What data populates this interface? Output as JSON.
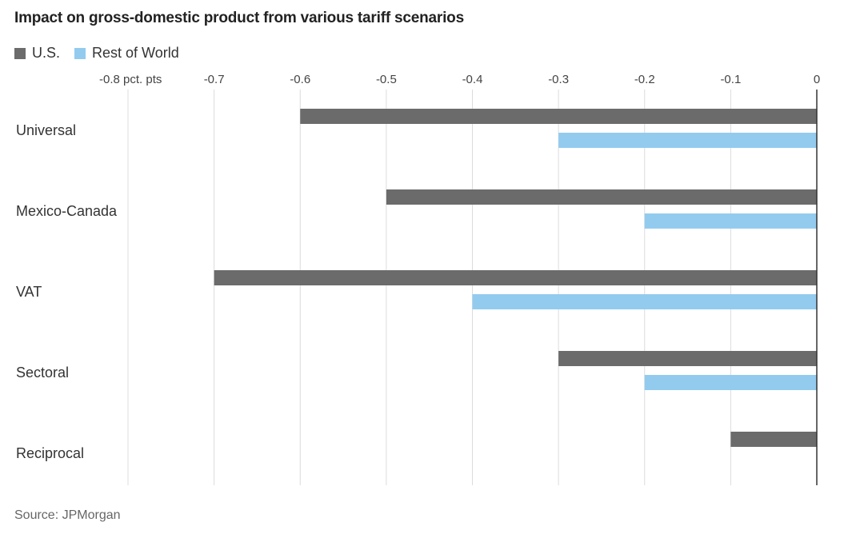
{
  "chart_data": {
    "type": "bar",
    "orientation": "horizontal",
    "title": "Impact on gross-domestic product from various tariff scenarios",
    "categories": [
      "Universal",
      "Mexico-Canada",
      "VAT",
      "Sectoral",
      "Reciprocal"
    ],
    "series": [
      {
        "name": "U.S.",
        "color": "#6b6b6b",
        "values": [
          -0.6,
          -0.5,
          -0.7,
          -0.3,
          -0.1
        ]
      },
      {
        "name": "Rest of World",
        "color": "#93cbef",
        "values": [
          -0.3,
          -0.2,
          -0.4,
          -0.2,
          null
        ]
      }
    ],
    "xlim": [
      -0.8,
      0
    ],
    "xticks": [
      -0.8,
      -0.7,
      -0.6,
      -0.5,
      -0.4,
      -0.3,
      -0.2,
      -0.1,
      0
    ],
    "xtick_labels": [
      "-0.8 pct. pts",
      "-0.7",
      "-0.6",
      "-0.5",
      "-0.4",
      "-0.3",
      "-0.2",
      "-0.1",
      "0"
    ],
    "xlabel": "",
    "ylabel": "",
    "grid": true,
    "legend_position": "top-left",
    "source": "Source: JPMorgan"
  }
}
